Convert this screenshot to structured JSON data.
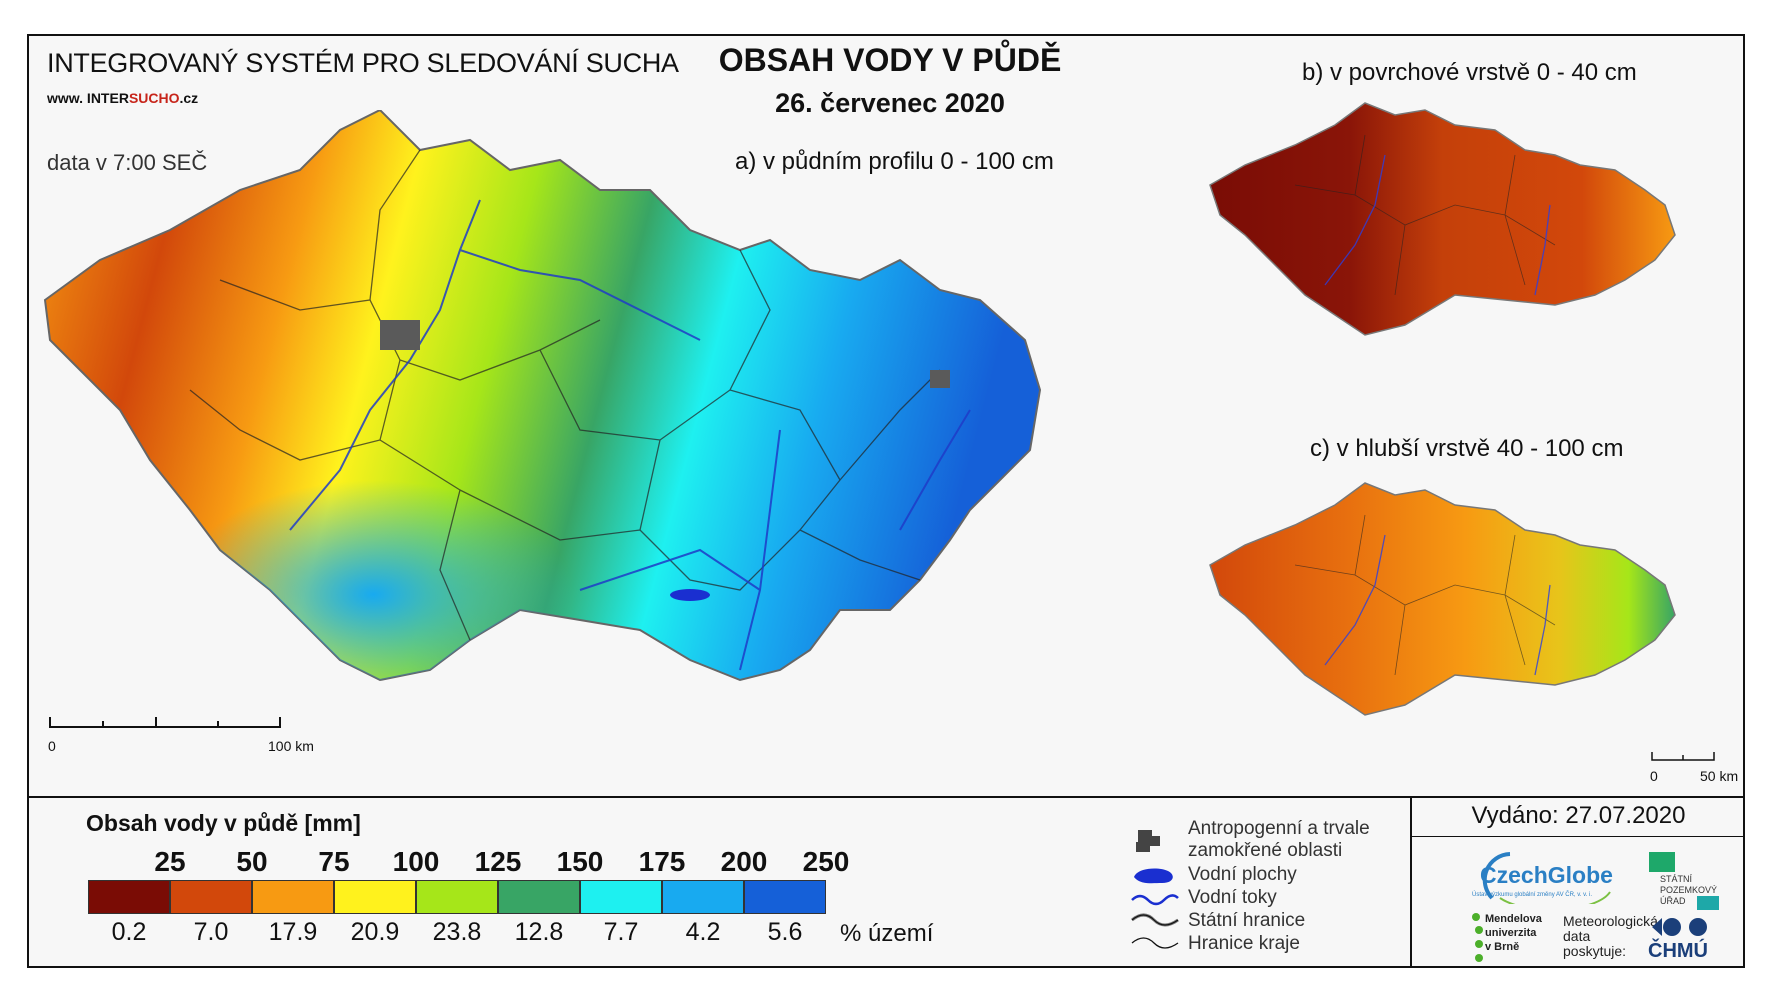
{
  "header": {
    "system_title": "INTEGROVANÝ SYSTÉM PRO SLEDOVÁNÍ SUCHA",
    "website_prefix": "www. INTER",
    "website_highlight": "SUCHO",
    "website_suffix": ".cz",
    "data_time": "data v 7:00 SEČ",
    "main_title": "OBSAH VODY V PŮDĚ",
    "date": "26. červenec 2020"
  },
  "maps": {
    "a_label": "a) v půdním profilu 0 - 100 cm",
    "b_label": "b) v povrchové vrstvě 0 - 40 cm",
    "c_label": "c) v hlubší vrstvě 40 - 100 cm",
    "scale_main": {
      "start": "0",
      "end": "100 km"
    },
    "scale_small": {
      "start": "0",
      "end": "50 km"
    }
  },
  "legend": {
    "title": "Obsah vody v půdě  [mm]",
    "unit": "% území",
    "thresholds": [
      "25",
      "50",
      "75",
      "100",
      "125",
      "150",
      "175",
      "200",
      "250"
    ],
    "classes": [
      {
        "color": "#7a0c05",
        "percent": "0.2"
      },
      {
        "color": "#d2480b",
        "percent": "7.0"
      },
      {
        "color": "#f79a12",
        "percent": "17.9"
      },
      {
        "color": "#fff21d",
        "percent": "20.9"
      },
      {
        "color": "#a6e619",
        "percent": "23.8"
      },
      {
        "color": "#38a565",
        "percent": "12.8"
      },
      {
        "color": "#1ef0f0",
        "percent": "7.7"
      },
      {
        "color": "#18aaf0",
        "percent": "4.2"
      },
      {
        "color": "#1560d8",
        "percent": "5.6"
      }
    ]
  },
  "symbols": {
    "anthropogenic": "Antropogenní a trvale",
    "anthropogenic2": "zamokřené oblasti",
    "water_bodies": "Vodní plochy",
    "rivers": "Vodní toky",
    "state_border": "Státní hranice",
    "region_border": "Hranice kraje"
  },
  "footer": {
    "issued": "Vydáno: 27.07.2020",
    "czechglobe": "CzechGlobe",
    "czechglobe_sub": "Ústav výzkumu globální změny AV ČR, v. v. i.",
    "spu": [
      "STÁTNÍ",
      "POZEMKOVÝ",
      "ÚŘAD"
    ],
    "mendelu": [
      "Mendelova",
      "univerzita",
      "v Brně"
    ],
    "meteo": [
      "Meteorologická",
      "data",
      "poskytuje:"
    ],
    "chmu": "ČHMÚ"
  }
}
